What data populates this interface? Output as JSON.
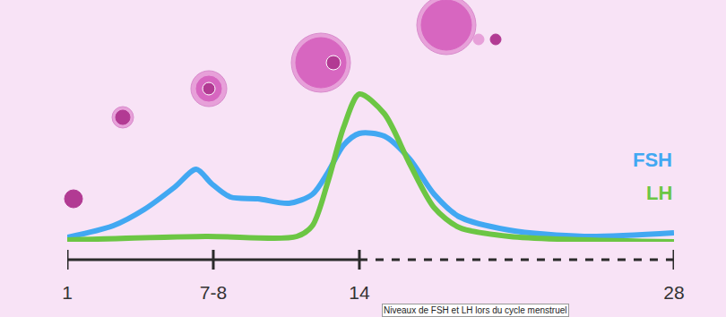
{
  "chart_data": {
    "type": "line",
    "annotations": [
      "Niveaux de FSH et LH lors du cycle menstruel"
    ],
    "xlim": [
      1,
      28
    ],
    "xticks": [
      1,
      {
        "value": 7.5,
        "label": "7-8"
      },
      14,
      28
    ],
    "ylim": [
      0,
      175
    ],
    "tick_labels": "x",
    "grid": false,
    "series": [
      {
        "name": "FSH",
        "color": "#42a8f2",
        "line_style": "solid",
        "x": [
          1,
          3.05,
          4.42,
          5.78,
          6.74,
          7.42,
          8.26,
          9.48,
          10.87,
          11.91,
          12.61,
          13.3,
          14,
          15.11,
          16.22,
          17.33,
          18.44,
          20.67,
          24,
          28
        ],
        "values": [
          5,
          18,
          36,
          61,
          81,
          65,
          50,
          48,
          43,
          53,
          78,
          108,
          121,
          118,
          93,
          53,
          28,
          13,
          6,
          10
        ]
      },
      {
        "name": "LH",
        "color": "#6cc644",
        "line_style": "solid",
        "x": [
          1,
          7.15,
          11.22,
          11.91,
          12.61,
          13.3,
          14,
          15.11,
          16.22,
          17.33,
          18.44,
          20.67,
          28
        ],
        "values": [
          2,
          6,
          6,
          18,
          68,
          128,
          165,
          143,
          88,
          38,
          16,
          6,
          0
        ]
      }
    ]
  }
}
